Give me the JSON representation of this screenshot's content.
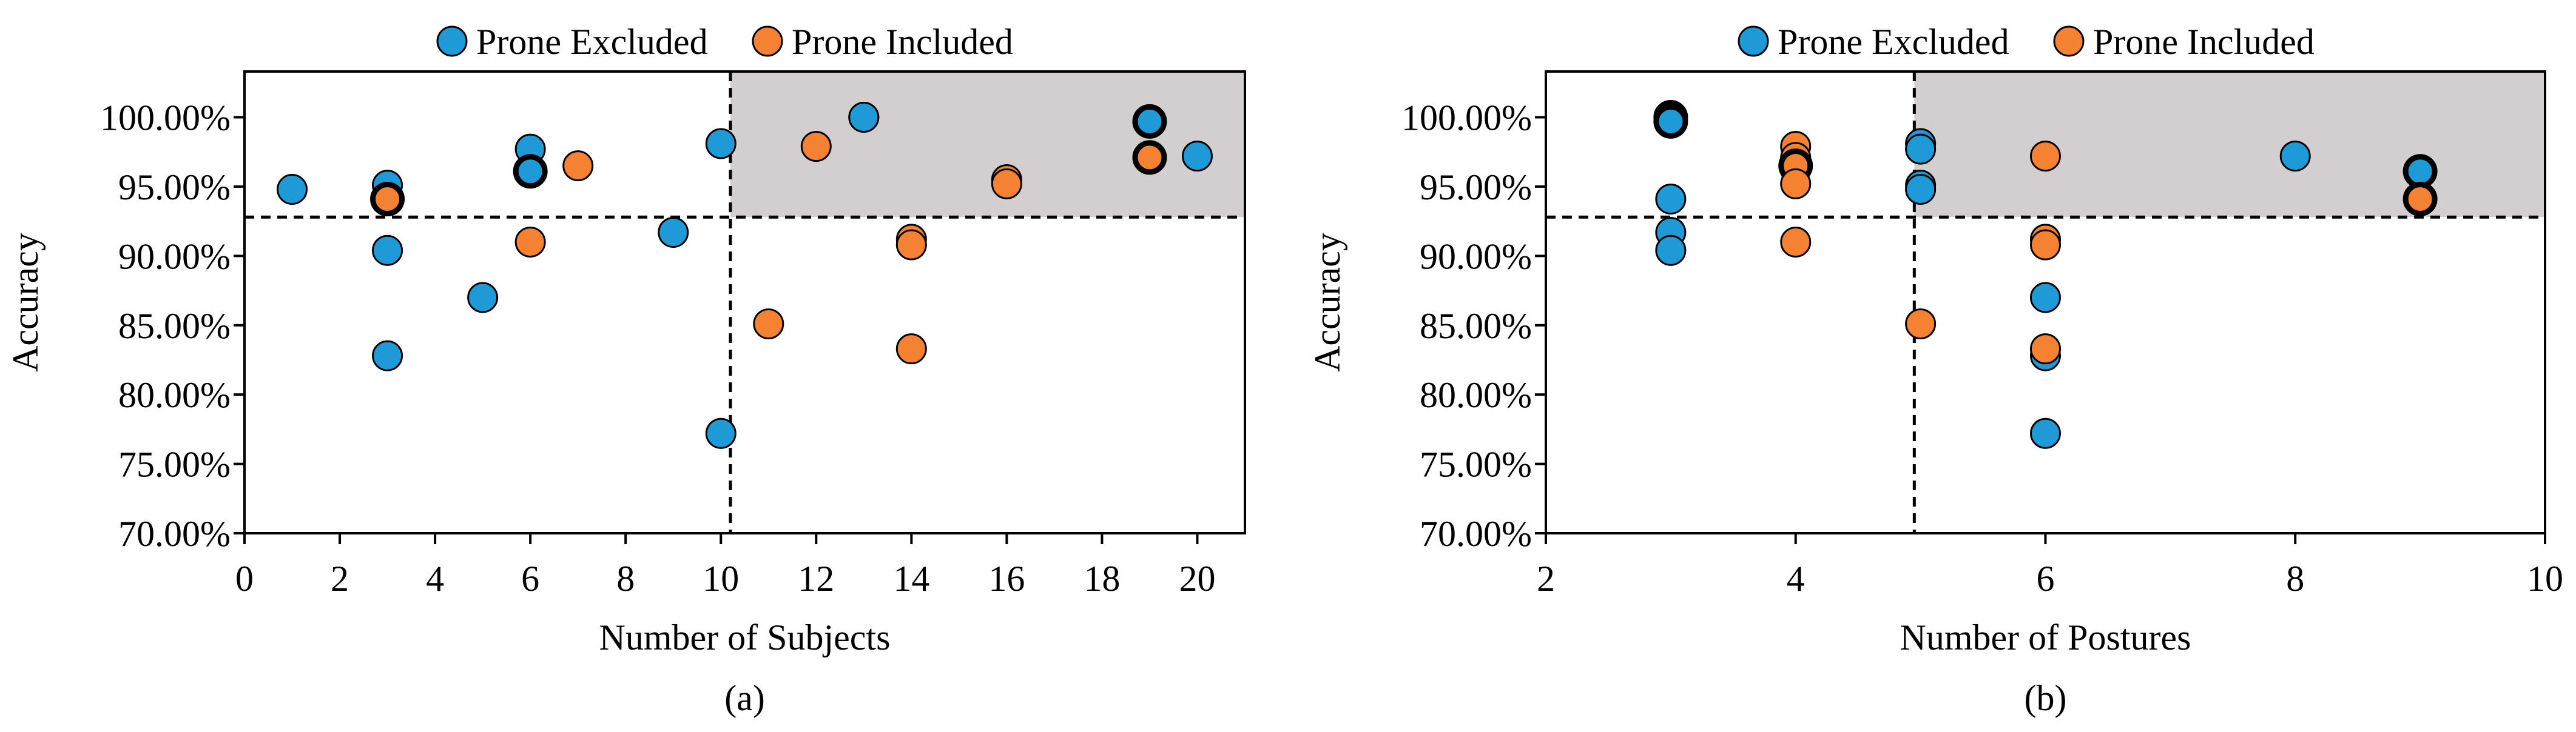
{
  "colors": {
    "excluded": "#1E9BD7",
    "included": "#F58232",
    "shade": "#D3CFD0"
  },
  "chart_data": [
    {
      "type": "scatter",
      "panel_label": "(a)",
      "xlabel": "Number of Subjects",
      "ylabel": "Accuracy",
      "xlim": [
        0,
        21
      ],
      "ylim": [
        70,
        103.3
      ],
      "xticks": [
        0,
        2,
        4,
        6,
        8,
        10,
        12,
        14,
        16,
        18,
        20
      ],
      "xtick_labels": [
        "0",
        "2",
        "4",
        "6",
        "8",
        "10",
        "12",
        "14",
        "16",
        "18",
        "20"
      ],
      "yticks": [
        70,
        75,
        80,
        85,
        90,
        95,
        100
      ],
      "ytick_labels": [
        "70.00%",
        "75.00%",
        "80.00%",
        "85.00%",
        "90.00%",
        "95.00%",
        "100.00%"
      ],
      "grid": false,
      "legend": {
        "position": "top",
        "entries": [
          "Prone Excluded",
          "Prone Included"
        ]
      },
      "threshold_x": 10.2,
      "threshold_y": 92.8,
      "shaded_region": "top-right",
      "series": [
        {
          "name": "Prone Excluded",
          "color": "#1E9BD7",
          "points": [
            {
              "x": 1,
              "y": 94.8
            },
            {
              "x": 3,
              "y": 95.1
            },
            {
              "x": 3,
              "y": 90.4
            },
            {
              "x": 3,
              "y": 82.8
            },
            {
              "x": 5,
              "y": 87.0
            },
            {
              "x": 6,
              "y": 97.7
            },
            {
              "x": 6,
              "y": 96.1,
              "highlight": true
            },
            {
              "x": 9,
              "y": 91.7
            },
            {
              "x": 10,
              "y": 98.1
            },
            {
              "x": 10,
              "y": 77.2
            },
            {
              "x": 13,
              "y": 100.0
            },
            {
              "x": 13,
              "y": 100.0
            },
            {
              "x": 19,
              "y": 99.7,
              "highlight": true
            },
            {
              "x": 20,
              "y": 97.2
            }
          ]
        },
        {
          "name": "Prone Included",
          "color": "#F58232",
          "points": [
            {
              "x": 3,
              "y": 94.1,
              "highlight": true
            },
            {
              "x": 6,
              "y": 91.0
            },
            {
              "x": 7,
              "y": 96.5
            },
            {
              "x": 11,
              "y": 85.1
            },
            {
              "x": 12,
              "y": 97.9
            },
            {
              "x": 14,
              "y": 91.2
            },
            {
              "x": 14,
              "y": 90.8
            },
            {
              "x": 14,
              "y": 83.3
            },
            {
              "x": 16,
              "y": 95.5
            },
            {
              "x": 16,
              "y": 95.2
            },
            {
              "x": 19,
              "y": 97.1,
              "highlight": true
            }
          ]
        }
      ]
    },
    {
      "type": "scatter",
      "panel_label": "(b)",
      "xlabel": "Number of Postures",
      "ylabel": "Accuracy",
      "xlim": [
        2,
        10
      ],
      "ylim": [
        70,
        103.3
      ],
      "xticks": [
        2,
        4,
        6,
        8,
        10
      ],
      "xtick_labels": [
        "2",
        "4",
        "6",
        "8",
        "10"
      ],
      "yticks": [
        70,
        75,
        80,
        85,
        90,
        95,
        100
      ],
      "ytick_labels": [
        "70.00%",
        "75.00%",
        "80.00%",
        "85.00%",
        "90.00%",
        "95.00%",
        "100.00%"
      ],
      "grid": false,
      "legend": {
        "position": "top",
        "entries": [
          "Prone Excluded",
          "Prone Included"
        ]
      },
      "threshold_x": 4.95,
      "threshold_y": 92.8,
      "shaded_region": "top-right",
      "series": [
        {
          "name": "Prone Excluded",
          "color": "#1E9BD7",
          "points": [
            {
              "x": 3,
              "y": 100.0,
              "highlight": true
            },
            {
              "x": 3,
              "y": 99.7,
              "highlight": true
            },
            {
              "x": 3,
              "y": 94.1
            },
            {
              "x": 3,
              "y": 91.7
            },
            {
              "x": 3,
              "y": 90.4
            },
            {
              "x": 4,
              "y": 96.2
            },
            {
              "x": 5,
              "y": 98.1
            },
            {
              "x": 5,
              "y": 97.7
            },
            {
              "x": 5,
              "y": 95.1
            },
            {
              "x": 5,
              "y": 94.8
            },
            {
              "x": 6,
              "y": 87.0
            },
            {
              "x": 6,
              "y": 82.8
            },
            {
              "x": 6,
              "y": 77.2
            },
            {
              "x": 8,
              "y": 97.2
            },
            {
              "x": 9,
              "y": 96.1,
              "highlight": true
            }
          ]
        },
        {
          "name": "Prone Included",
          "color": "#F58232",
          "points": [
            {
              "x": 4,
              "y": 97.9
            },
            {
              "x": 4,
              "y": 97.1
            },
            {
              "x": 4,
              "y": 96.5,
              "highlight": true
            },
            {
              "x": 4,
              "y": 95.2
            },
            {
              "x": 4,
              "y": 91.0
            },
            {
              "x": 5,
              "y": 85.1
            },
            {
              "x": 6,
              "y": 97.2
            },
            {
              "x": 6,
              "y": 91.2
            },
            {
              "x": 6,
              "y": 90.8
            },
            {
              "x": 6,
              "y": 83.3
            },
            {
              "x": 9,
              "y": 94.1,
              "highlight": true
            }
          ]
        }
      ]
    }
  ]
}
